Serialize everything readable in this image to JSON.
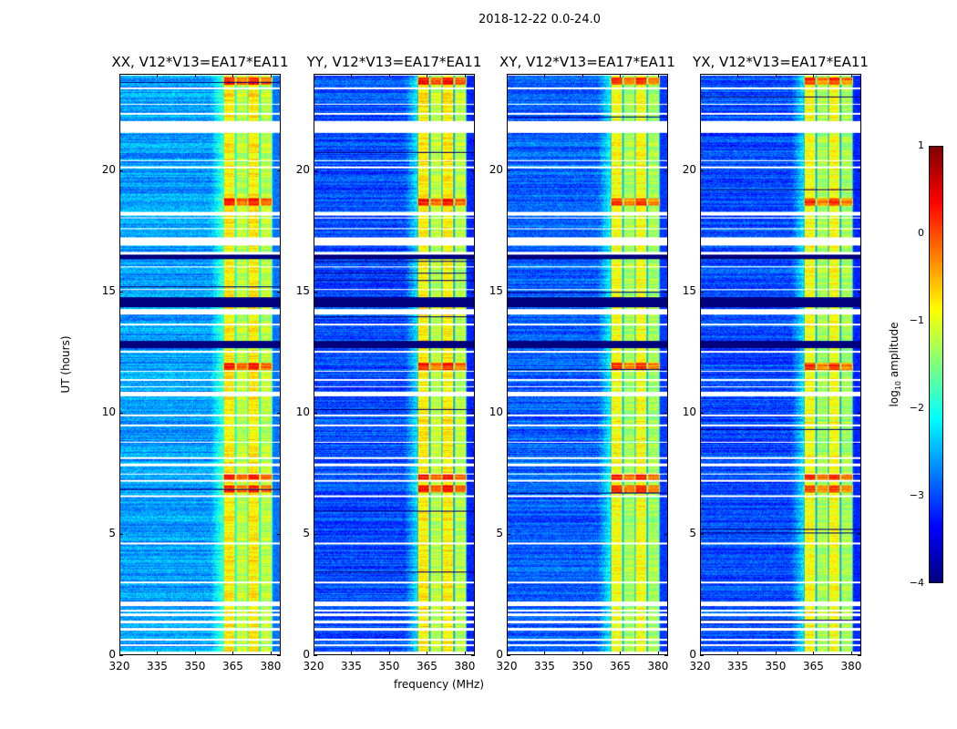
{
  "chart_data": {
    "type": "heatmap",
    "title": "2018-12-22 0.0-24.0",
    "xlabel": "frequency (MHz)",
    "ylabel": "UT (hours)",
    "xlim": [
      320,
      384
    ],
    "ylim": [
      0,
      24
    ],
    "xticks": [
      320,
      335,
      350,
      365,
      380
    ],
    "yticks": [
      0,
      5,
      10,
      15,
      20
    ],
    "panels": [
      {
        "title": "XX, V12*V13=EA17*EA11",
        "band_level": -0.9,
        "background_level": -2.6
      },
      {
        "title": "YY, V12*V13=EA17*EA11",
        "band_level": -0.9,
        "background_level": -3.0
      },
      {
        "title": "XY, V12*V13=EA17*EA11",
        "band_level": -1.0,
        "background_level": -2.9
      },
      {
        "title": "YX, V12*V13=EA17*EA11",
        "band_level": -1.0,
        "background_level": -3.0
      }
    ],
    "bright_band_mhz": [
      361,
      381
    ],
    "flagged_hours": [
      [
        21.6,
        22.1
      ],
      [
        17.0,
        17.3
      ],
      [
        16.6,
        16.7
      ],
      [
        14.1,
        14.3
      ],
      [
        12.5,
        12.6
      ],
      [
        2.0,
        2.2
      ],
      [
        1.0,
        1.1
      ],
      [
        0.05,
        0.12
      ],
      [
        0.35,
        0.42
      ],
      [
        0.6,
        0.66
      ],
      [
        1.35,
        1.42
      ],
      [
        1.6,
        1.7
      ],
      [
        1.8,
        1.88
      ],
      [
        7.8,
        7.9
      ],
      [
        8.1,
        8.2
      ],
      [
        10.7,
        10.8
      ],
      [
        18.2,
        18.35
      ],
      [
        23.4,
        23.5
      ]
    ],
    "low_hours": [
      [
        12.7,
        13.0
      ],
      [
        14.4,
        14.8
      ],
      [
        16.4,
        16.6
      ]
    ],
    "high_hours": [
      [
        6.7,
        7.0
      ],
      [
        7.2,
        7.5
      ],
      [
        11.8,
        12.1
      ],
      [
        18.6,
        18.9
      ],
      [
        23.6,
        23.9
      ]
    ],
    "colorbar": {
      "label": "log10 amplitude",
      "label_main": "log",
      "label_sub": "10",
      "label_rest": " amplitude",
      "range": [
        -4,
        1
      ],
      "ticks": [
        "1",
        "0",
        "−1",
        "−2",
        "−3",
        "−4"
      ],
      "colormap": "jet"
    }
  }
}
